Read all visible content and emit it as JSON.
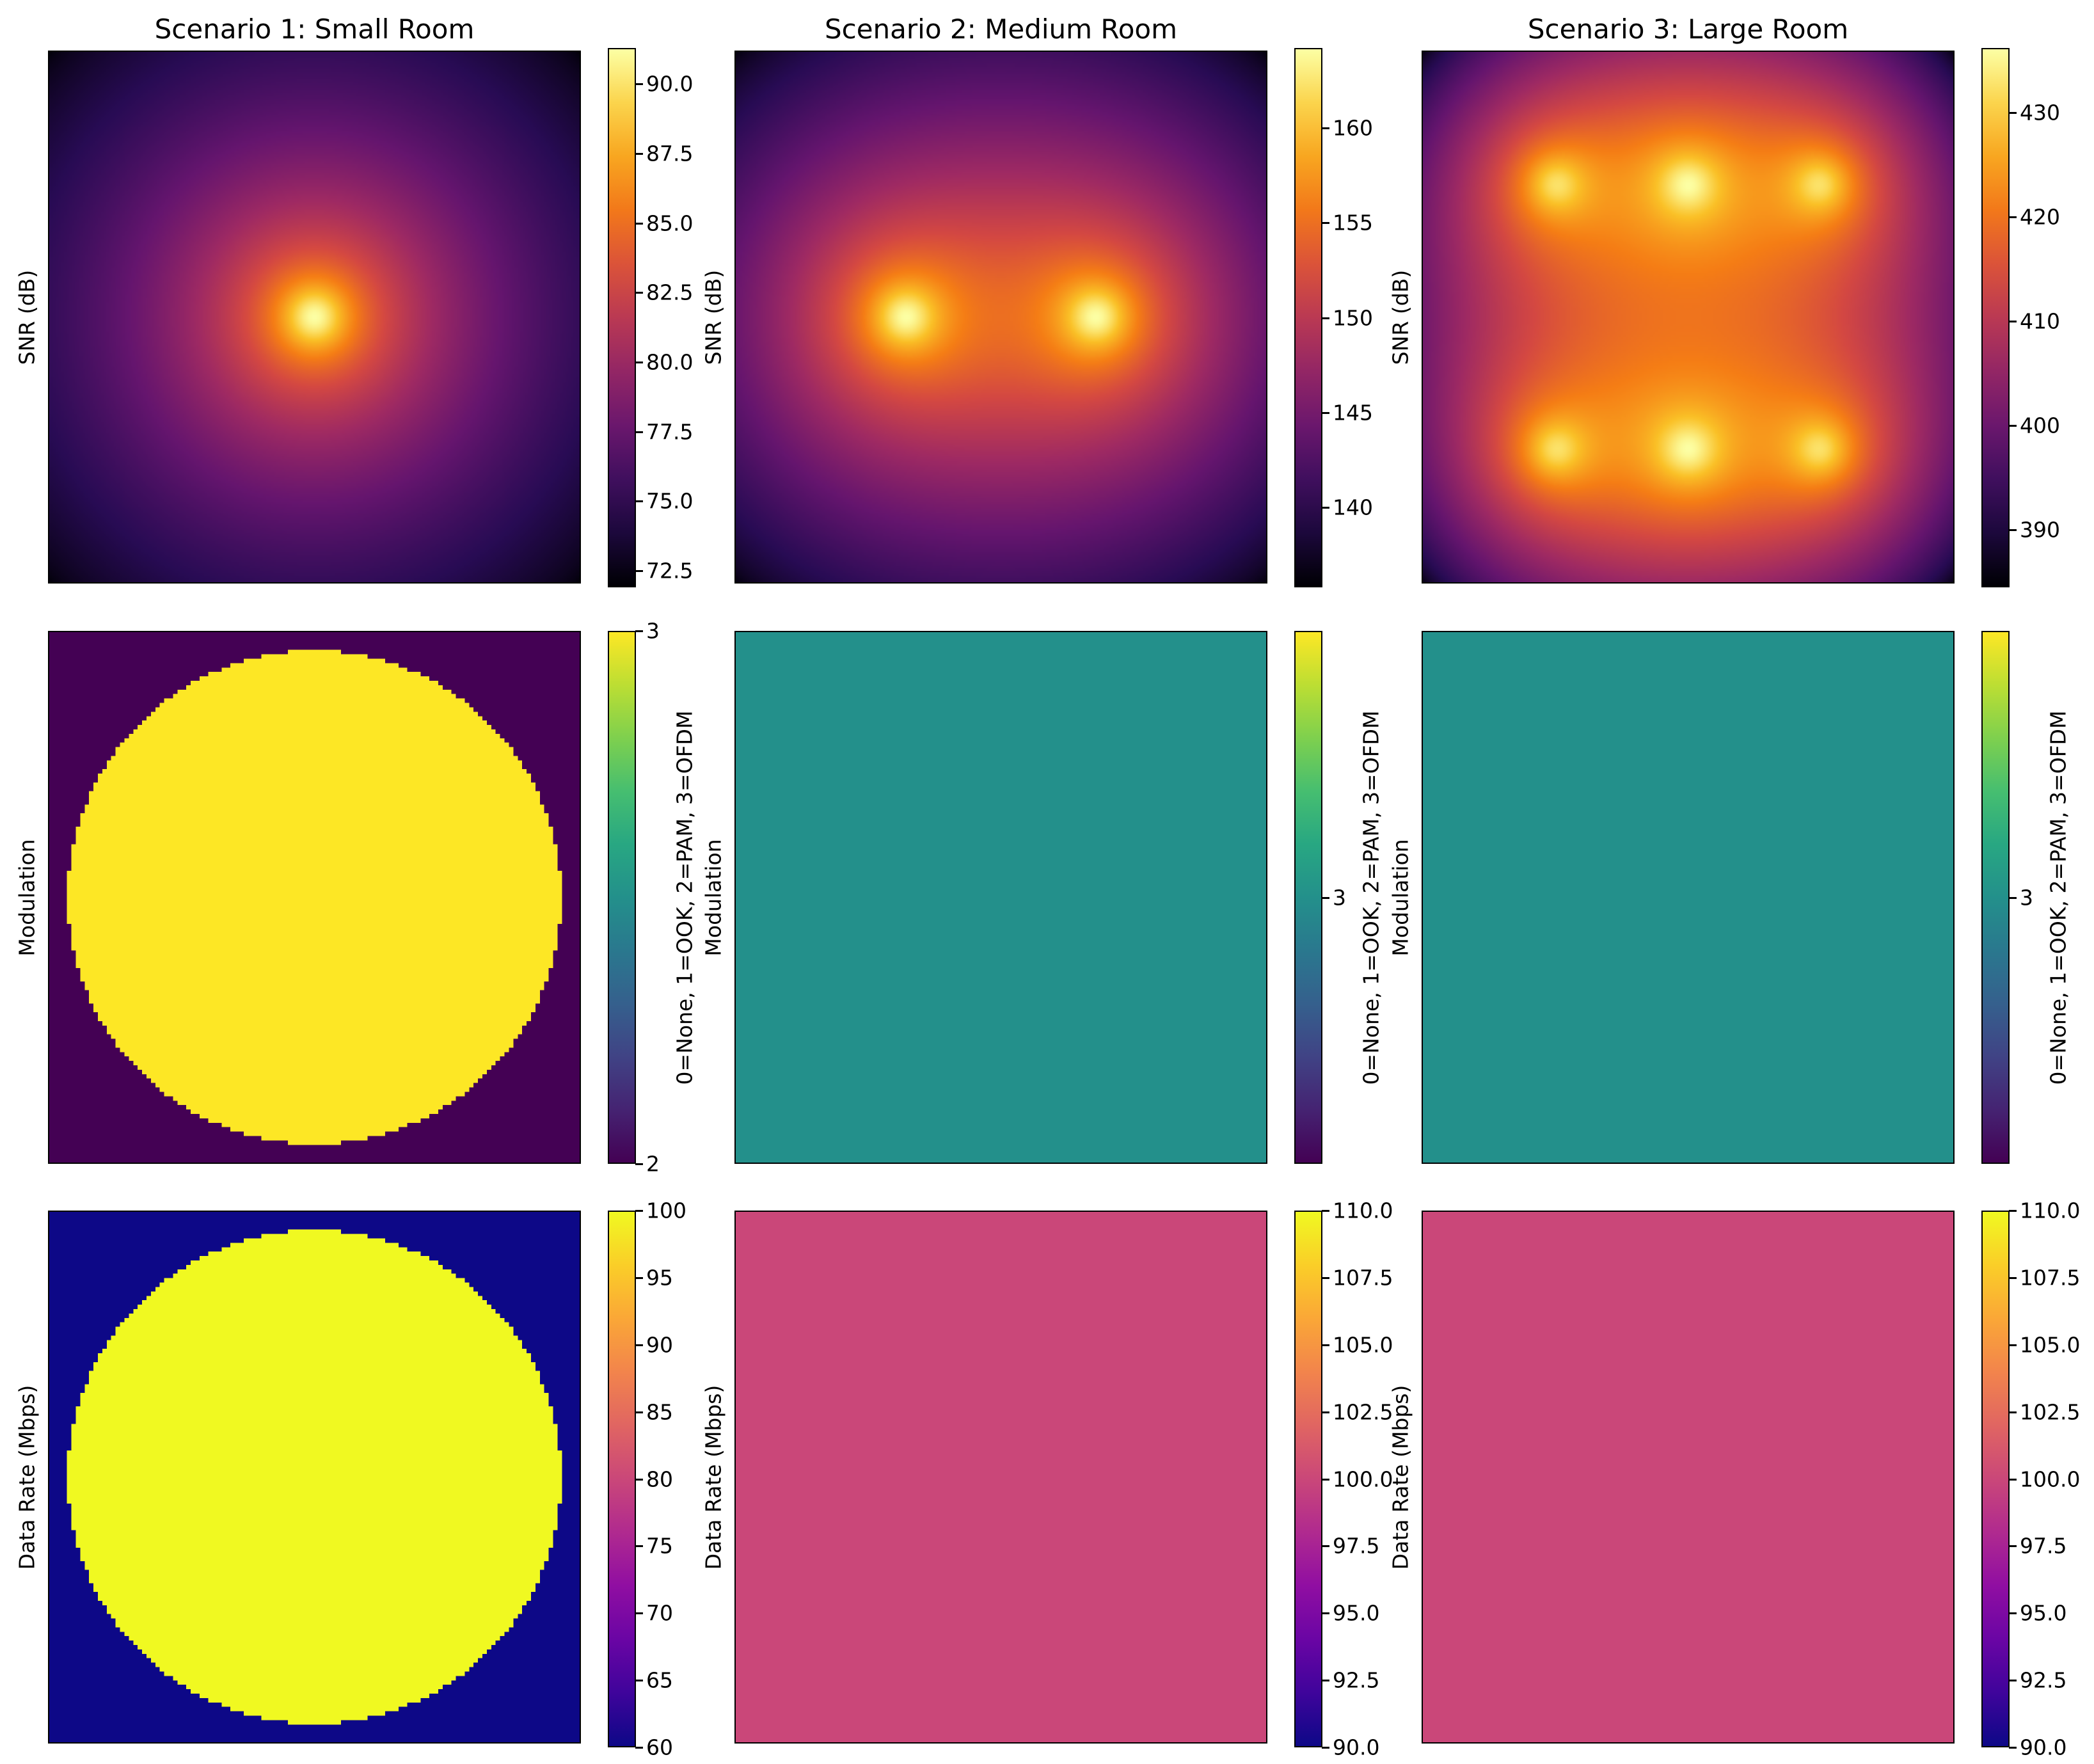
{
  "chart_data": [
    {
      "type": "heatmap",
      "title": "Scenario 1: Small Room",
      "ylabel": "SNR (dB)",
      "colormap": "inferno",
      "clim": [
        71.9,
        91.3
      ],
      "colorbar_ticks": [
        "72.5",
        "75.0",
        "77.5",
        "80.0",
        "82.5",
        "85.0",
        "87.5",
        "90.0"
      ],
      "pattern": "sources",
      "sources": [
        [
          0.5,
          0.5
        ]
      ],
      "peak": 91.3,
      "floor": 71.9
    },
    {
      "type": "heatmap",
      "title": "Scenario 2: Medium Room",
      "ylabel": "SNR (dB)",
      "colormap": "inferno",
      "clim": [
        135.8,
        164.2
      ],
      "colorbar_ticks": [
        "140",
        "145",
        "150",
        "155",
        "160"
      ],
      "pattern": "sources",
      "sources": [
        [
          0.32,
          0.5
        ],
        [
          0.68,
          0.5
        ]
      ],
      "peak": 164.2,
      "floor": 135.8
    },
    {
      "type": "heatmap",
      "title": "Scenario 3: Large Room",
      "ylabel": "SNR (dB)",
      "colormap": "inferno",
      "clim": [
        384.5,
        436.2
      ],
      "colorbar_ticks": [
        "390",
        "400",
        "410",
        "420",
        "430"
      ],
      "pattern": "sources",
      "sources": [
        [
          0.25,
          0.25
        ],
        [
          0.5,
          0.25
        ],
        [
          0.75,
          0.25
        ],
        [
          0.25,
          0.75
        ],
        [
          0.5,
          0.75
        ],
        [
          0.75,
          0.75
        ]
      ],
      "peak": 436.2,
      "floor": 384.5
    },
    {
      "type": "heatmap",
      "title": "",
      "ylabel": "Modulation",
      "colorbar_label": "0=None, 1=OOK, 2=PAM, 3=OFDM",
      "colormap": "viridis",
      "clim": [
        2,
        3
      ],
      "colorbar_ticks": [
        "2",
        "3"
      ],
      "pattern": "disk",
      "disk_radius": 0.465,
      "inside_value": 3,
      "outside_value": 2
    },
    {
      "type": "heatmap",
      "title": "",
      "ylabel": "Modulation",
      "colorbar_label": "0=None, 1=OOK, 2=PAM, 3=OFDM",
      "colormap": "viridis",
      "clim": [
        2.5,
        3.5
      ],
      "colorbar_ticks": [
        "3"
      ],
      "pattern": "constant",
      "value": 3
    },
    {
      "type": "heatmap",
      "title": "",
      "ylabel": "Modulation",
      "colorbar_label": "0=None, 1=OOK, 2=PAM, 3=OFDM",
      "colormap": "viridis",
      "clim": [
        2.5,
        3.5
      ],
      "colorbar_ticks": [
        "3"
      ],
      "pattern": "constant",
      "value": 3
    },
    {
      "type": "heatmap",
      "title": "",
      "ylabel": "Data Rate (Mbps)",
      "colormap": "plasma",
      "clim": [
        60,
        100
      ],
      "colorbar_ticks": [
        "60",
        "65",
        "70",
        "75",
        "80",
        "85",
        "90",
        "95",
        "100"
      ],
      "pattern": "disk",
      "disk_radius": 0.465,
      "inside_value": 100,
      "outside_value": 60
    },
    {
      "type": "heatmap",
      "title": "",
      "ylabel": "Data Rate (Mbps)",
      "colormap": "plasma",
      "clim": [
        90,
        110
      ],
      "colorbar_ticks": [
        "90.0",
        "92.5",
        "95.0",
        "97.5",
        "100.0",
        "102.5",
        "105.0",
        "107.5",
        "110.0"
      ],
      "pattern": "constant",
      "value": 100
    },
    {
      "type": "heatmap",
      "title": "",
      "ylabel": "Data Rate (Mbps)",
      "colormap": "plasma",
      "clim": [
        90,
        110
      ],
      "colorbar_ticks": [
        "90.0",
        "92.5",
        "95.0",
        "97.5",
        "100.0",
        "102.5",
        "105.0",
        "107.5",
        "110.0"
      ],
      "pattern": "constant",
      "value": 100
    }
  ]
}
